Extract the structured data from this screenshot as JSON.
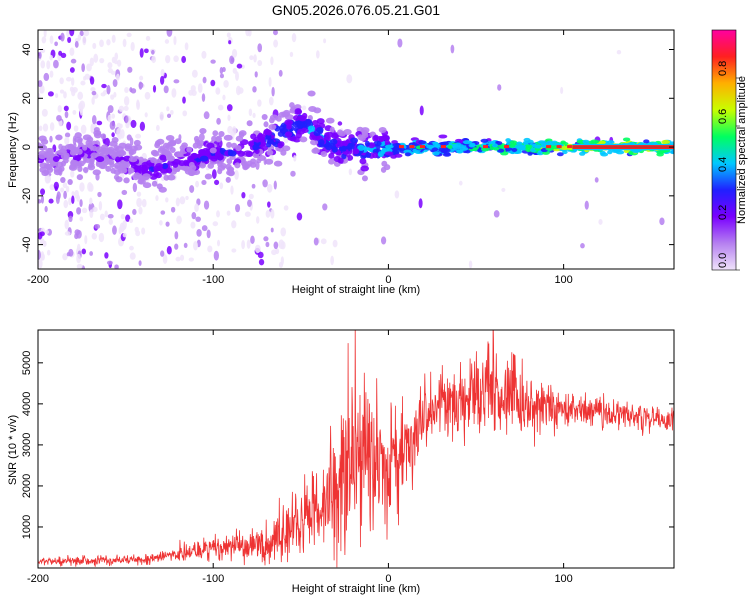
{
  "title": "GN05.2026.076.05.21.G01",
  "colors": {
    "series": "#ee3333",
    "centerline": "#555555"
  },
  "chart_data": [
    {
      "type": "heatmap",
      "xlabel": "Height of straight line (km)",
      "ylabel": "Frequency (Hz)",
      "xlim": [
        -200,
        163
      ],
      "ylim": [
        -50,
        48
      ],
      "xticks": [
        -200,
        -100,
        0,
        100
      ],
      "yticks": [
        -40,
        -20,
        0,
        20,
        40
      ],
      "colorbar": {
        "label": "Normalized spectral amplitude",
        "range": [
          0,
          1
        ],
        "ticks": [
          "0.0",
          "0.2",
          "0.4",
          "0.6",
          "0.8"
        ],
        "colormap": [
          "#f0e4fa",
          "#b580f0",
          "#7a00ff",
          "#2020ff",
          "#00c8ff",
          "#00ff60",
          "#c8ff00",
          "#ffb000",
          "#ff2020",
          "#ff00a0"
        ]
      },
      "ridge": [
        {
          "x": -190,
          "f": -5,
          "a": 0.3
        },
        {
          "x": -170,
          "f": -2,
          "a": 0.35
        },
        {
          "x": -150,
          "f": -6,
          "a": 0.3
        },
        {
          "x": -135,
          "f": -10,
          "a": 0.45
        },
        {
          "x": -120,
          "f": -5,
          "a": 0.4
        },
        {
          "x": -100,
          "f": -3,
          "a": 0.45
        },
        {
          "x": -85,
          "f": -2,
          "a": 0.4
        },
        {
          "x": -70,
          "f": 2,
          "a": 0.5
        },
        {
          "x": -60,
          "f": 5,
          "a": 0.55
        },
        {
          "x": -50,
          "f": 10,
          "a": 0.55
        },
        {
          "x": -40,
          "f": 5,
          "a": 0.55
        },
        {
          "x": -30,
          "f": 0,
          "a": 0.5
        },
        {
          "x": -15,
          "f": -1,
          "a": 0.55
        },
        {
          "x": 0,
          "f": -1,
          "a": 0.6
        },
        {
          "x": 20,
          "f": 0,
          "a": 0.65
        },
        {
          "x": 40,
          "f": 0,
          "a": 0.65
        },
        {
          "x": 60,
          "f": 0,
          "a": 0.7
        },
        {
          "x": 80,
          "f": 0,
          "a": 0.75
        },
        {
          "x": 100,
          "f": 0,
          "a": 0.8
        },
        {
          "x": 120,
          "f": 0,
          "a": 0.85
        },
        {
          "x": 163,
          "f": 0,
          "a": 0.85
        }
      ]
    },
    {
      "type": "line",
      "xlabel": "Height of straight line (km)",
      "ylabel": "SNR (10 * v/v)",
      "xlim": [
        -200,
        163
      ],
      "ylim": [
        0,
        5800
      ],
      "xticks": [
        -200,
        -100,
        0,
        100
      ],
      "yticks": [
        1000,
        2000,
        3000,
        4000,
        5000
      ],
      "series": [
        {
          "name": "SNR",
          "x": [
            -200,
            -180,
            -160,
            -140,
            -120,
            -100,
            -80,
            -70,
            -60,
            -50,
            -40,
            -30,
            -20,
            -10,
            0,
            10,
            20,
            30,
            40,
            50,
            60,
            70,
            80,
            100,
            120,
            140,
            163
          ],
          "values": [
            150,
            170,
            180,
            220,
            330,
            480,
            520,
            600,
            800,
            1050,
            1500,
            2000,
            2500,
            2700,
            2500,
            2900,
            3600,
            3950,
            4100,
            4150,
            4200,
            4150,
            4000,
            3900,
            3800,
            3700,
            3600
          ],
          "noise": [
            60,
            60,
            60,
            70,
            100,
            150,
            200,
            250,
            350,
            450,
            600,
            800,
            1100,
            900,
            600,
            500,
            450,
            400,
            450,
            500,
            550,
            450,
            350,
            250,
            200,
            180,
            160
          ]
        }
      ]
    }
  ]
}
